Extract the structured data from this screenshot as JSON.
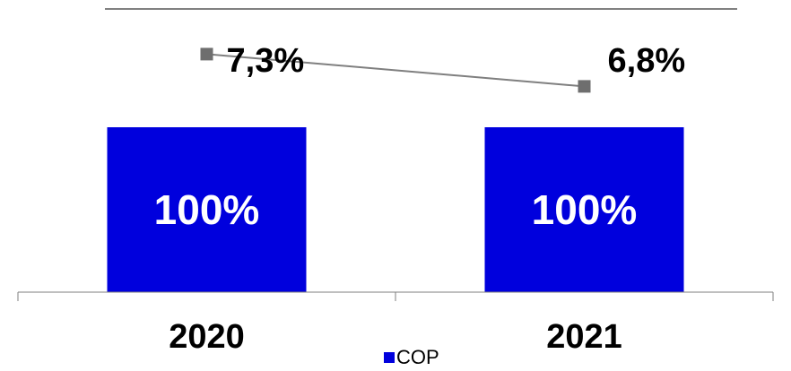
{
  "chart_data": {
    "type": "bar",
    "categories": [
      "2020",
      "2021"
    ],
    "series": [
      {
        "name": "COP",
        "type": "bar",
        "values": [
          100,
          100
        ],
        "labels": [
          "100%",
          "100%"
        ],
        "color": "#0000DD"
      },
      {
        "type": "line",
        "values": [
          7.3,
          6.8
        ],
        "labels": [
          "7,3%",
          "6,8%"
        ],
        "color": "#7F7F7F"
      }
    ],
    "legend": {
      "position": "bottom",
      "entries": [
        "COP"
      ]
    },
    "title": "",
    "xlabel": "",
    "ylabel": ""
  }
}
